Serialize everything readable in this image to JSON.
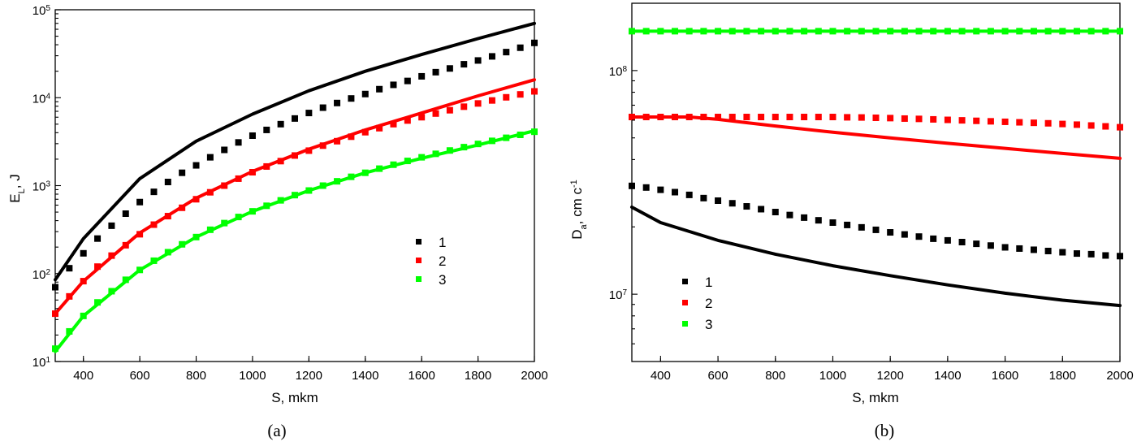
{
  "chart_data": [
    {
      "type": "line",
      "panel_label": "(a)",
      "xlabel": "S, mkm",
      "ylabel_main": "E",
      "ylabel_sub": "L",
      "ylabel_tail": ", J",
      "xlim": [
        300,
        2000
      ],
      "ylim": [
        10,
        100000
      ],
      "yscale": "log",
      "x_ticks": [
        "400",
        "600",
        "800",
        "1000",
        "1200",
        "1400",
        "1600",
        "1800",
        "2000"
      ],
      "y_ticks": [
        {
          "base": "10",
          "exp": "1"
        },
        {
          "base": "10",
          "exp": "2"
        },
        {
          "base": "10",
          "exp": "3"
        },
        {
          "base": "10",
          "exp": "4"
        },
        {
          "base": "10",
          "exp": "5"
        }
      ],
      "legend_position": "center-right",
      "legend": [
        "1",
        "2",
        "3"
      ],
      "series": [
        {
          "name": "1",
          "color": "#000000",
          "style": "line",
          "x": [
            300,
            400,
            600,
            800,
            1000,
            1200,
            1400,
            1600,
            1800,
            2000
          ],
          "y": [
            85,
            250,
            1200,
            3200,
            6500,
            12000,
            20000,
            31000,
            47000,
            70000
          ]
        },
        {
          "name": "1",
          "color": "#000000",
          "style": "markers",
          "x": [
            300,
            350,
            400,
            450,
            500,
            550,
            600,
            650,
            700,
            750,
            800,
            850,
            900,
            950,
            1000,
            1050,
            1100,
            1150,
            1200,
            1250,
            1300,
            1350,
            1400,
            1450,
            1500,
            1550,
            1600,
            1650,
            1700,
            1750,
            1800,
            1850,
            1900,
            1950,
            2000
          ],
          "y": [
            70,
            115,
            170,
            250,
            350,
            480,
            650,
            850,
            1100,
            1400,
            1700,
            2100,
            2550,
            3100,
            3700,
            4300,
            5000,
            5800,
            6700,
            7700,
            8700,
            9800,
            11000,
            12500,
            14000,
            15500,
            17500,
            19500,
            21500,
            24000,
            26500,
            29500,
            33000,
            37000,
            42000
          ]
        },
        {
          "name": "2",
          "color": "#ff0000",
          "style": "line",
          "x": [
            300,
            400,
            600,
            800,
            1000,
            1200,
            1400,
            1600,
            1800,
            2000
          ],
          "y": [
            35,
            82,
            290,
            720,
            1450,
            2600,
            4300,
            6700,
            10500,
            16000
          ]
        },
        {
          "name": "2",
          "color": "#ff0000",
          "style": "markers",
          "x": [
            300,
            350,
            400,
            450,
            500,
            550,
            600,
            650,
            700,
            750,
            800,
            850,
            900,
            950,
            1000,
            1050,
            1100,
            1150,
            1200,
            1250,
            1300,
            1350,
            1400,
            1450,
            1500,
            1550,
            1600,
            1650,
            1700,
            1750,
            1800,
            1850,
            1900,
            1950,
            2000
          ],
          "y": [
            35,
            55,
            82,
            120,
            160,
            210,
            280,
            360,
            450,
            560,
            700,
            840,
            1000,
            1200,
            1420,
            1650,
            1900,
            2200,
            2500,
            2850,
            3200,
            3600,
            4050,
            4500,
            5000,
            5500,
            6000,
            6600,
            7200,
            7900,
            8600,
            9300,
            10100,
            10900,
            11800
          ]
        },
        {
          "name": "3",
          "color": "#00ff00",
          "style": "line",
          "x": [
            300,
            400,
            600,
            800,
            1000,
            1200,
            1400,
            1600,
            1800,
            2000
          ],
          "y": [
            13,
            33,
            110,
            260,
            510,
            880,
            1400,
            2050,
            2900,
            4200
          ]
        },
        {
          "name": "3",
          "color": "#00ff00",
          "style": "markers",
          "x": [
            300,
            350,
            400,
            450,
            500,
            550,
            600,
            650,
            700,
            750,
            800,
            850,
            900,
            950,
            1000,
            1050,
            1100,
            1150,
            1200,
            1250,
            1300,
            1350,
            1400,
            1450,
            1500,
            1550,
            1600,
            1650,
            1700,
            1750,
            1800,
            1850,
            1900,
            1950,
            2000
          ],
          "y": [
            14,
            22,
            33,
            47,
            63,
            85,
            110,
            140,
            175,
            215,
            260,
            315,
            375,
            440,
            510,
            590,
            680,
            780,
            880,
            1000,
            1120,
            1260,
            1400,
            1560,
            1730,
            1910,
            2100,
            2300,
            2510,
            2740,
            2980,
            3230,
            3500,
            3780,
            4100
          ]
        }
      ]
    },
    {
      "type": "line",
      "panel_label": "(b)",
      "xlabel": "S, mkm",
      "ylabel_main": "D",
      "ylabel_sub": "a",
      "ylabel_tail": ", cm c",
      "ylabel_sup": "-1",
      "xlim": [
        300,
        2000
      ],
      "ylim": [
        5000000,
        200000000
      ],
      "yscale": "log",
      "x_ticks": [
        "400",
        "600",
        "800",
        "1000",
        "1200",
        "1400",
        "1600",
        "1800",
        "2000"
      ],
      "y_ticks": [
        {
          "base": "10",
          "exp": "7"
        },
        {
          "base": "10",
          "exp": "8"
        }
      ],
      "legend_position": "lower-left",
      "legend": [
        "1",
        "2",
        "3"
      ],
      "series": [
        {
          "name": "1",
          "color": "#000000",
          "style": "line",
          "x": [
            300,
            400,
            600,
            800,
            1000,
            1200,
            1400,
            1600,
            1800,
            2000
          ],
          "y": [
            24500000,
            20900000,
            17400000,
            15100000,
            13400000,
            12100000,
            11000000,
            10100000,
            9400000,
            8900000
          ]
        },
        {
          "name": "1",
          "color": "#000000",
          "style": "markers",
          "x": [
            300,
            350,
            400,
            450,
            500,
            550,
            600,
            650,
            700,
            750,
            800,
            850,
            900,
            950,
            1000,
            1050,
            1100,
            1150,
            1200,
            1250,
            1300,
            1350,
            1400,
            1450,
            1500,
            1550,
            1600,
            1650,
            1700,
            1750,
            1800,
            1850,
            1900,
            1950,
            2000
          ],
          "y": [
            30500000,
            30000000,
            29300000,
            28600000,
            27800000,
            26900000,
            26200000,
            25500000,
            24700000,
            24000000,
            23300000,
            22600000,
            22000000,
            21400000,
            20900000,
            20400000,
            19900000,
            19400000,
            18900000,
            18500000,
            18100000,
            17700000,
            17400000,
            17100000,
            16800000,
            16500000,
            16200000,
            16000000,
            15800000,
            15600000,
            15400000,
            15200000,
            15100000,
            14900000,
            14800000
          ]
        },
        {
          "name": "2",
          "color": "#ff0000",
          "style": "line",
          "x": [
            300,
            400,
            500,
            600,
            800,
            1000,
            1200,
            1400,
            1600,
            1800,
            2000
          ],
          "y": [
            62000000,
            62000000,
            62000000,
            60500000,
            56500000,
            53000000,
            50000000,
            47300000,
            44900000,
            42600000,
            40500000
          ]
        },
        {
          "name": "2",
          "color": "#ff0000",
          "style": "markers",
          "x": [
            300,
            350,
            400,
            450,
            500,
            550,
            600,
            650,
            700,
            750,
            800,
            850,
            900,
            950,
            1000,
            1050,
            1100,
            1150,
            1200,
            1250,
            1300,
            1350,
            1400,
            1450,
            1500,
            1550,
            1600,
            1650,
            1700,
            1750,
            1800,
            1850,
            1900,
            1950,
            2000
          ],
          "y": [
            62000000,
            62000000,
            62000000,
            62000000,
            62000000,
            62000000,
            62000000,
            62000000,
            62000000,
            62000000,
            62000000,
            62000000,
            62000000,
            62000000,
            62000000,
            61800000,
            61700000,
            61500000,
            61300000,
            61000000,
            60800000,
            60500000,
            60200000,
            59900000,
            59600000,
            59300000,
            59000000,
            58700000,
            58400000,
            58100000,
            57700000,
            57300000,
            56800000,
            56300000,
            55800000
          ]
        },
        {
          "name": "3",
          "color": "#00ff00",
          "style": "line",
          "x": [
            300,
            2000
          ],
          "y": [
            150000000,
            150000000
          ]
        },
        {
          "name": "3",
          "color": "#00ff00",
          "style": "markers",
          "x": [
            300,
            350,
            400,
            450,
            500,
            550,
            600,
            650,
            700,
            750,
            800,
            850,
            900,
            950,
            1000,
            1050,
            1100,
            1150,
            1200,
            1250,
            1300,
            1350,
            1400,
            1450,
            1500,
            1550,
            1600,
            1650,
            1700,
            1750,
            1800,
            1850,
            1900,
            1950,
            2000
          ],
          "y": [
            150000000,
            150000000,
            150000000,
            150000000,
            150000000,
            150000000,
            150000000,
            150000000,
            150000000,
            150000000,
            150000000,
            150000000,
            150000000,
            150000000,
            150000000,
            150000000,
            150000000,
            150000000,
            150000000,
            150000000,
            150000000,
            150000000,
            150000000,
            150000000,
            150000000,
            150000000,
            150000000,
            150000000,
            150000000,
            150000000,
            150000000,
            150000000,
            150000000,
            150000000,
            150000000
          ]
        }
      ]
    }
  ]
}
